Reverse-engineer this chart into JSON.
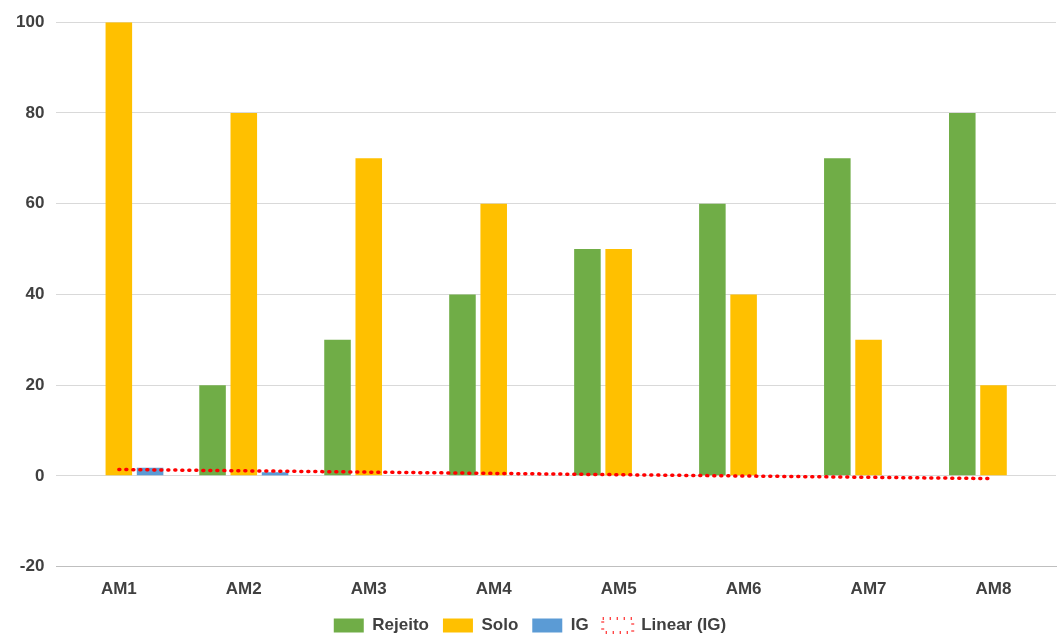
{
  "chart_data": {
    "type": "bar",
    "categories": [
      "AM1",
      "AM2",
      "AM3",
      "AM4",
      "AM5",
      "AM6",
      "AM7",
      "AM8"
    ],
    "series": [
      {
        "name": "Rejeito",
        "color": "#70ad47",
        "values": [
          0,
          20,
          30,
          40,
          50,
          60,
          70,
          80
        ]
      },
      {
        "name": "Solo",
        "color": "#ffc000",
        "values": [
          100,
          80,
          70,
          60,
          50,
          40,
          30,
          20
        ]
      },
      {
        "name": "IG",
        "color": "#5b9bd5",
        "values": [
          1.8,
          0.8,
          0,
          0,
          0,
          0,
          0,
          0
        ]
      },
      {
        "name": "Linear (IG)",
        "type": "line",
        "color": "#ff0000",
        "line_style": "dotted",
        "x": [
          "AM1",
          "AM8"
        ],
        "values": [
          1.4,
          -0.6
        ]
      }
    ],
    "ylim": [
      -20,
      100
    ],
    "yticks": [
      -20,
      0,
      20,
      40,
      60,
      80,
      100
    ],
    "grid": "y",
    "legend": "bottom"
  }
}
